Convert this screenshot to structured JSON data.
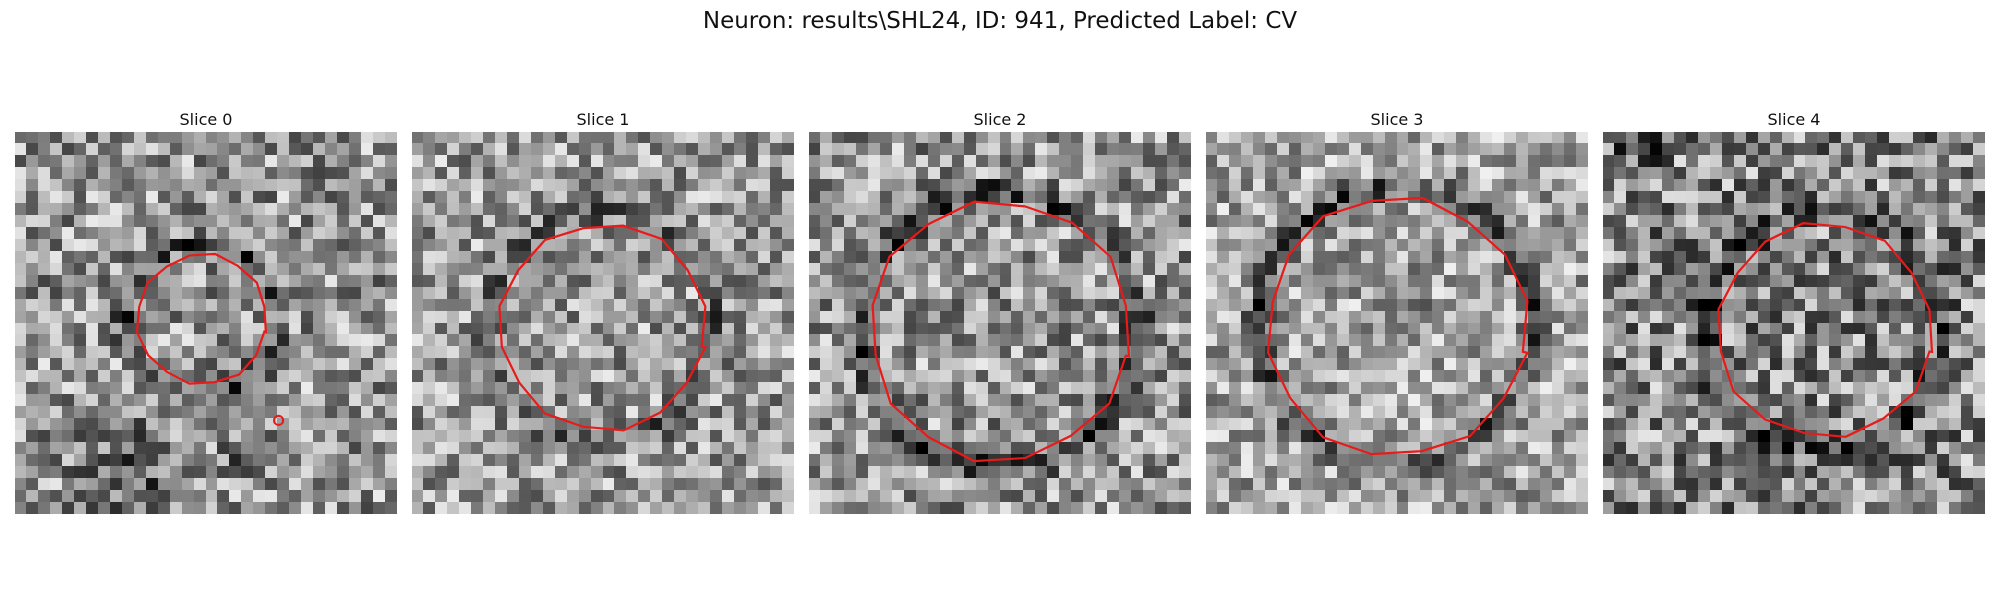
{
  "figure": {
    "title": "Neuron: results\\SHL24, ID: 941, Predicted Label: CV",
    "contour_color": "#e81b1b"
  },
  "slices": [
    {
      "label": "Slice 0"
    },
    {
      "label": "Slice 1"
    },
    {
      "label": "Slice 2"
    },
    {
      "label": "Slice 3"
    },
    {
      "label": "Slice 4"
    }
  ]
}
